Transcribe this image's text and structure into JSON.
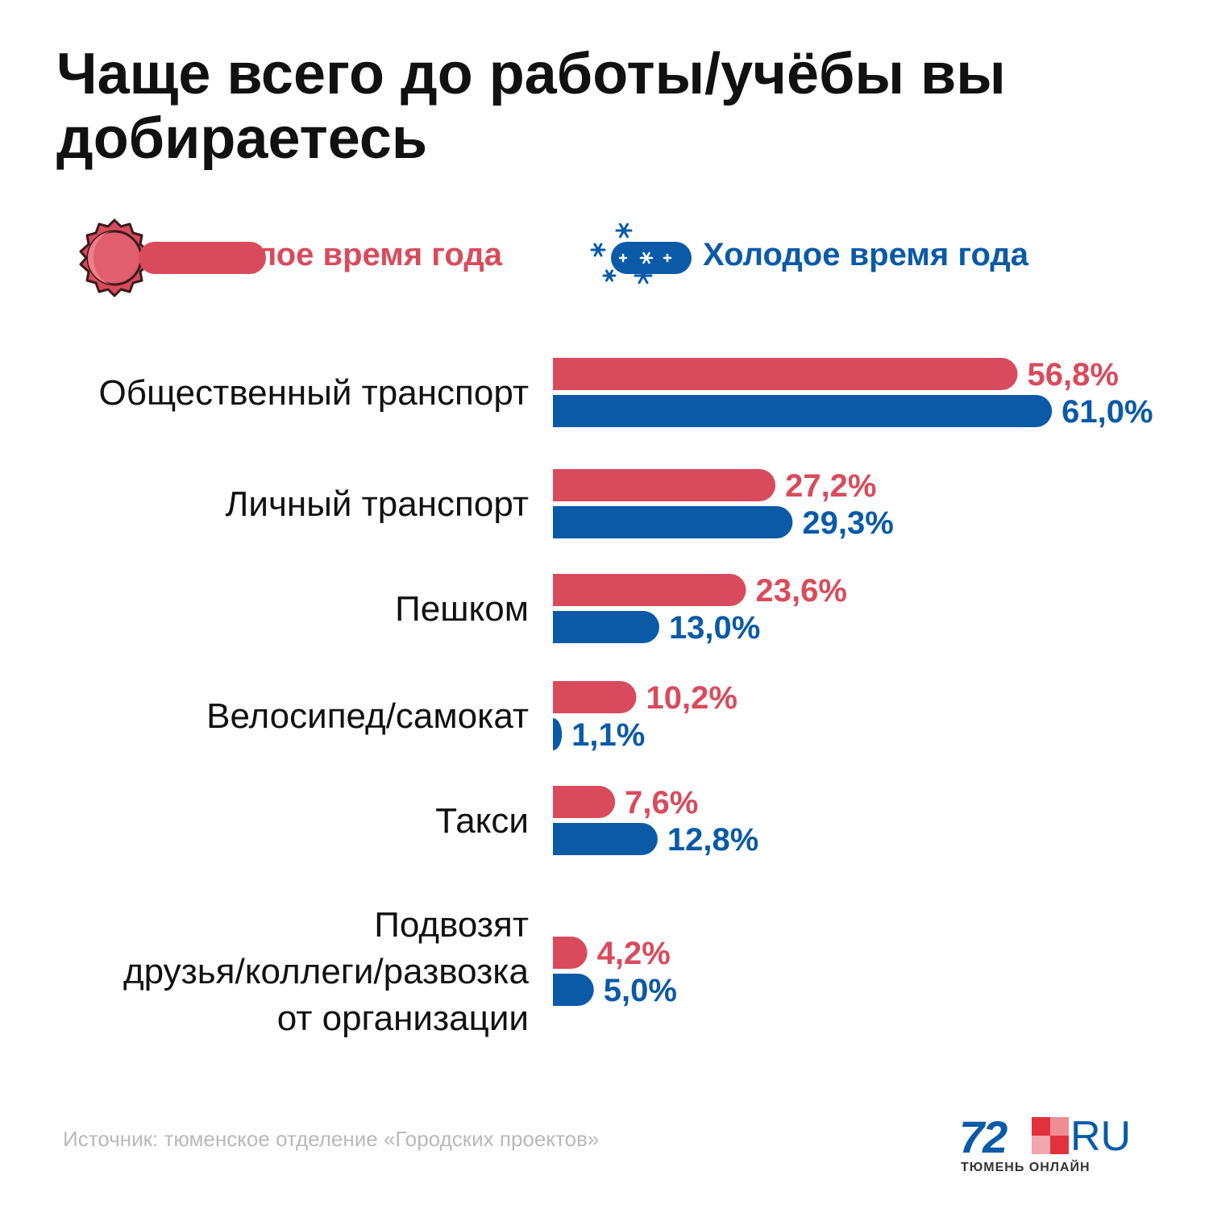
{
  "title": "Чаще всего до работы/учёбы вы добираетесь",
  "source": "Источник: тюменское отделение «Городских проектов»",
  "logo": {
    "number": "72",
    "suffix": "RU",
    "tagline": "ТЮМЕНЬ ОНЛАЙН"
  },
  "colors": {
    "warm": "#d94b5c",
    "cold": "#0a5aa8",
    "title": "#111111",
    "source": "#b9b9b9"
  },
  "legend": {
    "warm": {
      "label": "Тёплое время года",
      "icon": "sun-icon"
    },
    "cold": {
      "label": "Холодое время года",
      "icon": "snowflake-icon"
    }
  },
  "chart_data": {
    "type": "bar",
    "orientation": "horizontal",
    "categories": [
      "Общественный транспорт",
      "Личный транспорт",
      "Пешком",
      "Велосипед/самокат",
      "Такси",
      "Подвозят друзья/коллеги/развозка от организации"
    ],
    "category_lines": [
      [
        "Общественный транспорт"
      ],
      [
        "Личный транспорт"
      ],
      [
        "Пешком"
      ],
      [
        "Велосипед/самокат"
      ],
      [
        "Такси"
      ],
      [
        "Подвозят",
        "друзья/коллеги/развозка",
        "от организации"
      ]
    ],
    "series": [
      {
        "name": "Тёплое время года",
        "color": "#d94b5c",
        "values": [
          56.8,
          27.2,
          23.6,
          10.2,
          7.6,
          4.2
        ],
        "labels": [
          "56,8%",
          "27,2%",
          "23,6%",
          "10,2%",
          "7,6%",
          "4,2%"
        ]
      },
      {
        "name": "Холодое время года",
        "color": "#0a5aa8",
        "values": [
          61.0,
          29.3,
          13.0,
          1.1,
          12.8,
          5.0
        ],
        "labels": [
          "61,0%",
          "29,3%",
          "13,0%",
          "1,1%",
          "12,8%",
          "5,0%"
        ]
      }
    ],
    "unit": "%",
    "grid": false,
    "legend_position": "top"
  }
}
